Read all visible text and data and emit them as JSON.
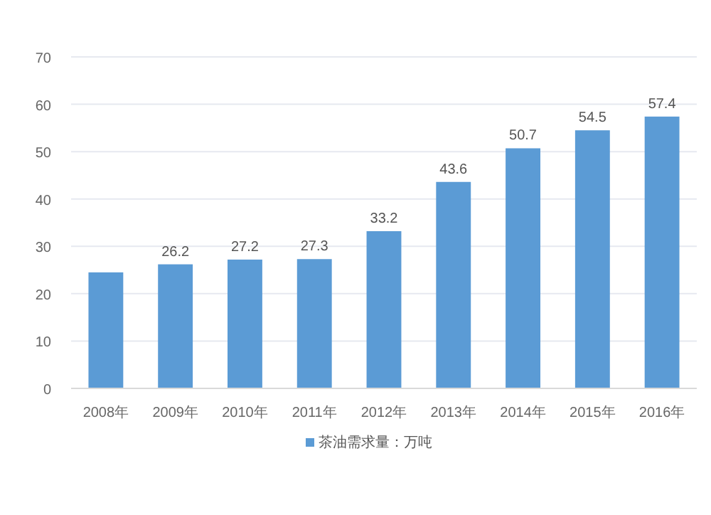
{
  "chart_data": {
    "type": "bar",
    "categories": [
      "2008年",
      "2009年",
      "2010年",
      "2011年",
      "2012年",
      "2013年",
      "2014年",
      "2015年",
      "2016年"
    ],
    "series": [
      {
        "name": "茶油需求量：万吨",
        "color": "#5b9bd5",
        "values": [
          24.5,
          26.2,
          27.2,
          27.3,
          33.2,
          43.6,
          50.7,
          54.5,
          57.4
        ],
        "value_labels": [
          null,
          "26.2",
          "27.2",
          "27.3",
          "33.2",
          "43.6",
          "50.7",
          "54.5",
          "57.4"
        ]
      }
    ],
    "ylim": [
      0,
      70
    ],
    "yticks": [
      0,
      10,
      20,
      30,
      40,
      50,
      60,
      70
    ],
    "grid": "y",
    "legend": "bottom left"
  }
}
